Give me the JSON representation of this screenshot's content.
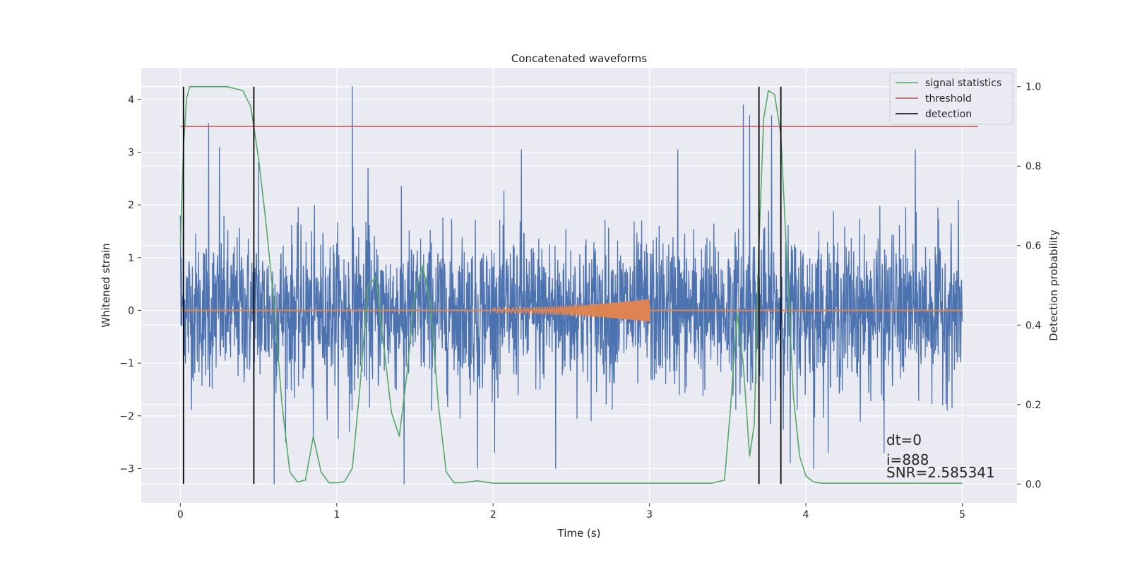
{
  "chart_data": {
    "type": "line",
    "title": "Concatenated waveforms",
    "xlabel": "Time (s)",
    "ylabel": "Whitened strain",
    "y2label": "Detection probability",
    "xlim": [
      -0.25,
      5.35
    ],
    "ylim": [
      -3.65,
      4.6
    ],
    "y2lim": [
      -0.0475,
      1.0475
    ],
    "xticks": [
      0,
      1,
      2,
      3,
      4,
      5
    ],
    "xtick_labels": [
      "0",
      "1",
      "2",
      "3",
      "4",
      "5"
    ],
    "yticks": [
      -3,
      -2,
      -1,
      0,
      1,
      2,
      3,
      4
    ],
    "ytick_labels": [
      "−3",
      "−2",
      "−1",
      "0",
      "1",
      "2",
      "3",
      "4"
    ],
    "y2ticks": [
      0.0,
      0.2,
      0.4,
      0.6,
      0.8,
      1.0
    ],
    "y2tick_labels": [
      "0.0",
      "0.2",
      "0.4",
      "0.6",
      "0.8",
      "1.0"
    ],
    "grid": true,
    "legend_position": "top-right",
    "legend": [
      "signal statistics",
      "threshold",
      "detection"
    ],
    "colors": {
      "strain": "#4c72b0",
      "injected": "#dd8452",
      "signal": "#55a868",
      "threshold": "#c44e52",
      "detection": "#000000",
      "background": "#eaeaf2",
      "grid": "#ffffff"
    },
    "series": [
      {
        "axis": "left",
        "x_range": [
          0,
          5
        ],
        "approx_range": [
          -3.3,
          4.25
        ],
        "peaks": [
          [
            0.0,
            1.8
          ],
          [
            0.02,
            2.4
          ],
          [
            0.18,
            3.55
          ],
          [
            0.25,
            3.1
          ],
          [
            0.5,
            2.8
          ],
          [
            1.1,
            4.25
          ],
          [
            1.2,
            2.7
          ],
          [
            2.18,
            3.05
          ],
          [
            3.18,
            3.05
          ],
          [
            3.6,
            3.9
          ],
          [
            3.64,
            3.7
          ],
          [
            3.78,
            3.7
          ],
          [
            4.7,
            3.05
          ]
        ],
        "troughs": [
          [
            0.47,
            -2.1
          ],
          [
            0.6,
            -3.3
          ],
          [
            0.85,
            -2.4
          ],
          [
            1.08,
            -2.3
          ],
          [
            1.43,
            -3.3
          ],
          [
            1.9,
            -3.0
          ],
          [
            2.4,
            -3.0
          ],
          [
            3.9,
            -2.9
          ],
          [
            4.05,
            -3.0
          ],
          [
            4.5,
            -2.7
          ]
        ]
      },
      {
        "axis": "left",
        "type": "chirp",
        "x_range": [
          2.0,
          3.0
        ],
        "amplitude": [
          0.05,
          0.22
        ],
        "frequency_hz": [
          30,
          200
        ]
      },
      {
        "name": "signal statistics",
        "axis": "right",
        "x": [
          0.0,
          0.02,
          0.04,
          0.06,
          0.08,
          0.1,
          0.2,
          0.3,
          0.4,
          0.45,
          0.5,
          0.55,
          0.6,
          0.65,
          0.7,
          0.75,
          0.8,
          0.85,
          0.9,
          0.95,
          1.0,
          1.05,
          1.1,
          1.15,
          1.2,
          1.25,
          1.3,
          1.35,
          1.4,
          1.45,
          1.5,
          1.55,
          1.6,
          1.65,
          1.7,
          1.75,
          1.8,
          1.9,
          2.0,
          2.5,
          3.0,
          3.4,
          3.48,
          3.52,
          3.56,
          3.6,
          3.64,
          3.67,
          3.7,
          3.73,
          3.76,
          3.8,
          3.84,
          3.88,
          3.92,
          3.96,
          4.0,
          4.05,
          4.1,
          4.2,
          5.0
        ],
        "y": [
          0.6,
          0.85,
          0.97,
          1.0,
          1.0,
          1.0,
          1.0,
          1.0,
          0.99,
          0.95,
          0.82,
          0.65,
          0.45,
          0.2,
          0.03,
          0.005,
          0.01,
          0.12,
          0.03,
          0.003,
          0.003,
          0.006,
          0.04,
          0.25,
          0.5,
          0.52,
          0.35,
          0.18,
          0.12,
          0.28,
          0.48,
          0.55,
          0.45,
          0.2,
          0.03,
          0.003,
          0.003,
          0.008,
          0.002,
          0.002,
          0.002,
          0.002,
          0.01,
          0.2,
          0.43,
          0.3,
          0.07,
          0.15,
          0.6,
          0.92,
          0.99,
          0.98,
          0.88,
          0.55,
          0.22,
          0.07,
          0.02,
          0.005,
          0.002,
          0.002,
          0.002
        ]
      },
      {
        "name": "threshold",
        "axis": "right",
        "x": [
          0.0,
          5.1
        ],
        "y": [
          0.9,
          0.9
        ]
      },
      {
        "name": "detection",
        "axis": "right",
        "vlines": [
          0.02,
          0.47,
          3.7,
          3.84
        ],
        "y_range": [
          0.0,
          1.0
        ]
      }
    ],
    "annotations": [
      "dt=0",
      "i=888",
      "SNR=2.585341"
    ]
  }
}
